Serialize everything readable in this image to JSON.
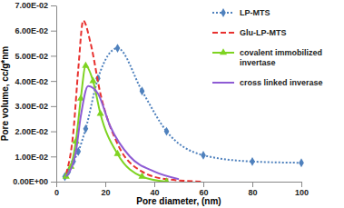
{
  "chart_data": {
    "type": "line",
    "x_label": "Pore diameter, (nm)",
    "y_label": "Pore volume, cc/g*nm",
    "xlim": [
      0,
      100
    ],
    "xticks": [
      0,
      20,
      40,
      60,
      80,
      100
    ],
    "ylim": [
      0,
      0.07
    ],
    "yticks": [
      {
        "value": 0,
        "label": "0.00E+00"
      },
      {
        "value": 0.01,
        "label": "1.00E-02"
      },
      {
        "value": 0.02,
        "label": "2.00E-02"
      },
      {
        "value": 0.03,
        "label": "3.00E-02"
      },
      {
        "value": 0.04,
        "label": "4.00E-02"
      },
      {
        "value": 0.05,
        "label": "5.00E-02"
      },
      {
        "value": 0.06,
        "label": "6.00E-02"
      },
      {
        "value": 0.07,
        "label": "7.00E-02"
      }
    ],
    "grid": false,
    "legend": "upper right",
    "series": [
      {
        "name": "LP-MTS",
        "color": "#4f81bd",
        "marker": "diamond",
        "line_style": "dotted",
        "x": [
          3.5,
          5,
          7,
          9,
          12,
          17,
          25,
          35,
          45,
          60,
          80,
          100
        ],
        "values": [
          0.002,
          0.004,
          0.008,
          0.012,
          0.021,
          0.041,
          0.053,
          0.036,
          0.02,
          0.0105,
          0.008,
          0.0075
        ]
      },
      {
        "name": "Glu-LP-MTS",
        "color": "#e8312f",
        "marker": "none",
        "line_style": "dashed",
        "x": [
          4,
          7,
          9,
          11,
          14,
          18,
          25,
          35,
          45,
          60
        ],
        "values": [
          0.003,
          0.02,
          0.045,
          0.064,
          0.055,
          0.035,
          0.015,
          0.004,
          0.001,
          0.0
        ]
      },
      {
        "name": "covalent immobilized invertase",
        "color": "#7ed321",
        "marker": "triangle",
        "line_style": "solid",
        "x": [
          4,
          6,
          8,
          10,
          12,
          15,
          18,
          25,
          35,
          45
        ],
        "values": [
          0.002,
          0.006,
          0.016,
          0.033,
          0.046,
          0.04,
          0.027,
          0.011,
          0.002,
          0.0
        ]
      },
      {
        "name": "cross linked inverase",
        "color": "#8e5bd4",
        "marker": "none",
        "line_style": "solid",
        "x": [
          4,
          8,
          10,
          13,
          17,
          22,
          30,
          40,
          50
        ],
        "values": [
          0.002,
          0.012,
          0.026,
          0.038,
          0.035,
          0.022,
          0.01,
          0.004,
          0.001
        ]
      }
    ]
  }
}
